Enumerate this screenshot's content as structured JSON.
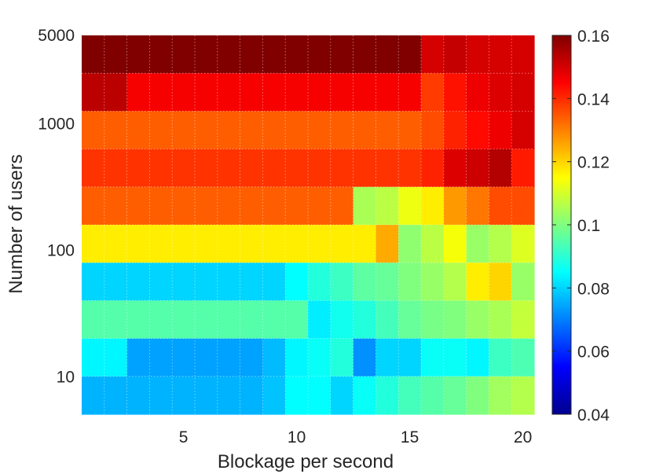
{
  "chart_data": {
    "type": "heatmap",
    "title": "",
    "xlabel": "Blockage per second",
    "ylabel": "Number of users",
    "xlim": [
      0,
      20
    ],
    "x_ticks": [
      5,
      10,
      15,
      20
    ],
    "x_tick_labels": [
      "5",
      "10",
      "15",
      "20"
    ],
    "y_scale": "log",
    "y_ticks": [
      10,
      100,
      1000,
      5000
    ],
    "y_tick_labels": [
      "10",
      "100",
      "1000",
      "5000"
    ],
    "x_centers": [
      1,
      2,
      3,
      4,
      5,
      6,
      7,
      8,
      9,
      10,
      11,
      12,
      13,
      14,
      15,
      16,
      17,
      18,
      19,
      20
    ],
    "row_labels_note": "rows ordered from top (highest user count) to bottom (lowest)",
    "colorbar": {
      "colormap": "jet",
      "range": [
        0.04,
        0.16
      ],
      "ticks": [
        0.04,
        0.06,
        0.08,
        0.1,
        0.12,
        0.14,
        0.16
      ],
      "tick_labels": [
        "0.04",
        "0.06",
        "0.08",
        "0.1",
        "0.12",
        "0.14",
        "0.16"
      ]
    },
    "values": [
      [
        0.16,
        0.16,
        0.16,
        0.16,
        0.16,
        0.16,
        0.16,
        0.16,
        0.16,
        0.16,
        0.16,
        0.16,
        0.16,
        0.16,
        0.16,
        0.15,
        0.152,
        0.15,
        0.15,
        0.15
      ],
      [
        0.153,
        0.153,
        0.146,
        0.146,
        0.146,
        0.146,
        0.146,
        0.146,
        0.146,
        0.146,
        0.146,
        0.146,
        0.146,
        0.146,
        0.146,
        0.138,
        0.143,
        0.147,
        0.149,
        0.15
      ],
      [
        0.134,
        0.134,
        0.134,
        0.134,
        0.134,
        0.134,
        0.134,
        0.134,
        0.134,
        0.134,
        0.134,
        0.134,
        0.134,
        0.134,
        0.134,
        0.136,
        0.141,
        0.144,
        0.147,
        0.15
      ],
      [
        0.139,
        0.139,
        0.139,
        0.139,
        0.139,
        0.139,
        0.139,
        0.139,
        0.139,
        0.139,
        0.139,
        0.139,
        0.139,
        0.139,
        0.139,
        0.141,
        0.149,
        0.151,
        0.154,
        0.142
      ],
      [
        0.134,
        0.134,
        0.134,
        0.134,
        0.134,
        0.134,
        0.134,
        0.134,
        0.134,
        0.134,
        0.134,
        0.134,
        0.105,
        0.107,
        0.113,
        0.117,
        0.127,
        0.131,
        0.136,
        0.136
      ],
      [
        0.117,
        0.117,
        0.117,
        0.117,
        0.117,
        0.117,
        0.117,
        0.117,
        0.117,
        0.117,
        0.117,
        0.117,
        0.117,
        0.125,
        0.102,
        0.107,
        0.114,
        0.103,
        0.106,
        0.111
      ],
      [
        0.08,
        0.08,
        0.08,
        0.08,
        0.08,
        0.08,
        0.08,
        0.08,
        0.08,
        0.085,
        0.089,
        0.092,
        0.096,
        0.097,
        0.1,
        0.103,
        0.106,
        0.117,
        0.12,
        0.103
      ],
      [
        0.095,
        0.095,
        0.095,
        0.095,
        0.095,
        0.095,
        0.095,
        0.095,
        0.095,
        0.095,
        0.083,
        0.087,
        0.089,
        0.093,
        0.097,
        0.099,
        0.1,
        0.103,
        0.105,
        0.108
      ],
      [
        0.084,
        0.084,
        0.074,
        0.074,
        0.074,
        0.074,
        0.074,
        0.074,
        0.077,
        0.084,
        0.086,
        0.089,
        0.072,
        0.08,
        0.08,
        0.086,
        0.086,
        0.084,
        0.092,
        0.094
      ],
      [
        0.076,
        0.076,
        0.076,
        0.076,
        0.076,
        0.076,
        0.076,
        0.076,
        0.078,
        0.085,
        0.085,
        0.08,
        0.086,
        0.089,
        0.093,
        0.095,
        0.097,
        0.1,
        0.104,
        0.106
      ]
    ]
  }
}
